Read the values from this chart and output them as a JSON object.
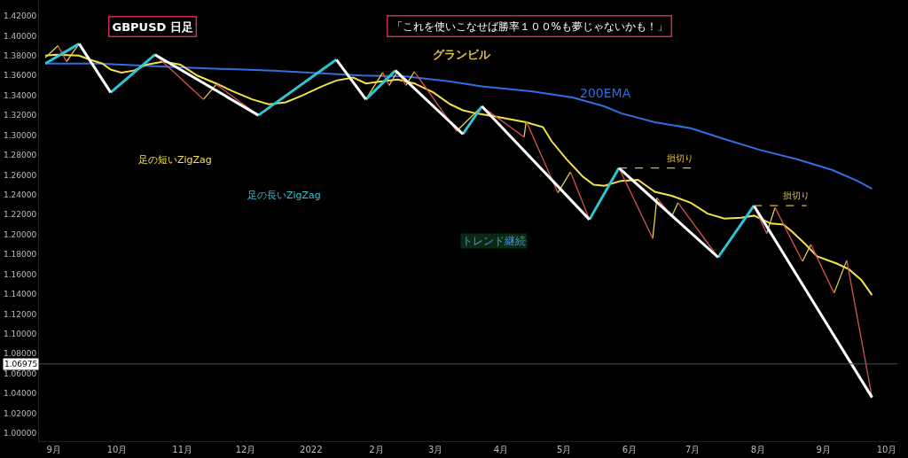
{
  "chart_data": {
    "type": "line",
    "title": "GBPUSD 日足",
    "subtitle": "「これを使いこなせば勝率１００%も夢じゃないかも！」",
    "annotations": [
      "グランビル",
      "足の短いZigZag",
      "足の長いZigZag",
      "トレンド継続",
      {
        "text": "損切り",
        "x": "2022-06-25",
        "y": 1.267
      },
      {
        "text": "損切り",
        "x": "2022-08-19",
        "y": 1.229
      }
    ],
    "series": [
      {
        "name": "200EMA",
        "color": "#2f6fe0",
        "x": [
          "2021-08-28",
          "2021-09-22",
          "2021-11-02",
          "2021-12-14",
          "2022-01-25",
          "2022-02-15",
          "2022-03-08",
          "2022-03-23",
          "2022-04-16",
          "2022-05-05",
          "2022-05-20",
          "2022-05-28",
          "2022-06-13",
          "2022-06-30",
          "2022-07-16",
          "2022-08-02",
          "2022-08-19",
          "2022-09-05",
          "2022-09-17",
          "2022-09-24"
        ],
        "values": [
          1.372,
          1.372,
          1.368,
          1.365,
          1.36,
          1.359,
          1.354,
          1.349,
          1.344,
          1.338,
          1.329,
          1.322,
          1.313,
          1.307,
          1.296,
          1.285,
          1.276,
          1.265,
          1.254,
          1.246
        ]
      },
      {
        "color": "#f2e04a",
        "x": [
          "2021-08-28",
          "2021-09-02",
          "2021-09-13",
          "2021-09-18",
          "2021-09-24",
          "2021-09-28",
          "2021-10-03",
          "2021-10-09",
          "2021-10-15",
          "2021-10-23",
          "2021-10-31",
          "2021-11-08",
          "2021-11-17",
          "2021-11-25",
          "2021-12-04",
          "2021-12-12",
          "2021-12-20",
          "2021-12-28",
          "2022-01-06",
          "2022-01-13",
          "2022-01-21",
          "2022-01-27",
          "2022-02-03",
          "2022-02-11",
          "2022-02-19",
          "2022-02-28",
          "2022-03-08",
          "2022-03-14",
          "2022-03-20",
          "2022-03-31",
          "2022-04-13",
          "2022-04-21",
          "2022-04-25",
          "2022-05-02",
          "2022-05-10",
          "2022-05-15",
          "2022-05-20",
          "2022-05-28",
          "2022-06-05",
          "2022-06-13",
          "2022-06-21",
          "2022-06-30",
          "2022-07-08",
          "2022-07-16",
          "2022-07-24",
          "2022-07-30",
          "2022-08-07",
          "2022-08-13",
          "2022-08-17",
          "2022-08-23",
          "2022-08-29",
          "2022-09-07",
          "2022-09-13",
          "2022-09-19",
          "2022-09-24"
        ],
        "values": [
          1.38,
          1.381,
          1.38,
          1.376,
          1.372,
          1.366,
          1.363,
          1.365,
          1.371,
          1.374,
          1.371,
          1.36,
          1.352,
          1.344,
          1.336,
          1.331,
          1.333,
          1.34,
          1.349,
          1.355,
          1.358,
          1.352,
          1.354,
          1.356,
          1.352,
          1.343,
          1.331,
          1.325,
          1.322,
          1.318,
          1.313,
          1.308,
          1.294,
          1.276,
          1.258,
          1.25,
          1.249,
          1.254,
          1.255,
          1.243,
          1.239,
          1.232,
          1.221,
          1.216,
          1.217,
          1.219,
          1.211,
          1.21,
          1.203,
          1.191,
          1.178,
          1.171,
          1.165,
          1.154,
          1.139
        ]
      },
      {
        "color": "#e6d34a",
        "x": [
          "2021-08-28",
          "2021-09-03",
          null,
          "2021-09-07",
          "2021-09-13",
          null,
          "2021-11-11",
          "2021-11-17",
          null,
          "2022-01-27",
          "2022-02-04",
          null,
          "2022-02-07",
          "2022-02-11",
          null,
          "2022-02-15",
          "2022-02-19",
          null,
          "2022-03-11",
          "2022-03-23",
          null,
          "2022-04-12",
          "2022-04-13",
          null,
          "2022-04-28",
          "2022-05-04",
          null,
          "2022-06-12",
          "2022-06-14",
          null,
          "2022-06-21",
          "2022-06-24",
          null,
          "2022-08-05",
          "2022-08-09",
          null,
          "2022-08-22",
          "2022-08-26",
          null,
          "2022-09-06",
          "2022-09-12"
        ],
        "values": [
          1.378,
          1.39,
          null,
          1.374,
          1.392,
          null,
          1.336,
          1.351,
          null,
          1.336,
          1.363,
          null,
          1.35,
          1.364,
          null,
          1.35,
          1.364,
          null,
          1.304,
          1.329,
          null,
          1.298,
          1.314,
          null,
          1.242,
          1.263,
          null,
          1.196,
          1.237,
          null,
          1.218,
          1.232,
          null,
          1.201,
          1.227,
          null,
          1.173,
          1.19,
          null,
          1.141,
          1.174
        ]
      },
      {
        "color": "#d9534f",
        "x": [
          "2021-09-03",
          "2021-09-07",
          null,
          "2021-10-19",
          "2021-11-11",
          null,
          "2021-11-17",
          "2021-12-07",
          null,
          "2022-02-04",
          "2022-02-07",
          null,
          "2022-02-11",
          "2022-02-15",
          null,
          "2022-02-19",
          "2022-03-11",
          null,
          "2022-03-23",
          "2022-04-12",
          null,
          "2022-04-13",
          "2022-04-28",
          null,
          "2022-05-04",
          "2022-05-13",
          null,
          "2022-05-27",
          "2022-06-12",
          null,
          "2022-06-14",
          "2022-06-21",
          null,
          "2022-06-24",
          "2022-07-13",
          null,
          "2022-07-30",
          "2022-08-05",
          null,
          "2022-08-09",
          "2022-08-22",
          null,
          "2022-08-26",
          "2022-09-06",
          null,
          "2022-09-12",
          "2022-09-24"
        ],
        "values": [
          1.39,
          1.374,
          null,
          1.381,
          1.336,
          null,
          1.351,
          1.32,
          null,
          1.363,
          1.35,
          null,
          1.364,
          1.35,
          null,
          1.364,
          1.304,
          null,
          1.329,
          1.298,
          null,
          1.314,
          1.242,
          null,
          1.263,
          1.215,
          null,
          1.267,
          1.196,
          null,
          1.237,
          1.218,
          null,
          1.232,
          1.177,
          null,
          1.229,
          1.201,
          null,
          1.227,
          1.173,
          null,
          1.19,
          1.141,
          null,
          1.174,
          1.036
        ]
      },
      {
        "color": "#2ec4d6",
        "x": [
          "2021-08-28",
          "2021-09-13",
          null,
          "2021-09-28",
          "2021-10-19",
          null,
          "2021-12-07",
          "2022-01-13",
          null,
          "2022-01-27",
          "2022-02-10",
          null,
          "2022-03-14",
          "2022-03-23",
          null,
          "2022-05-13",
          "2022-05-27",
          null,
          "2022-07-13",
          "2022-07-30"
        ],
        "values": [
          1.372,
          1.392,
          null,
          1.343,
          1.381,
          null,
          1.32,
          1.376,
          null,
          1.336,
          1.365,
          null,
          1.301,
          1.329,
          null,
          1.215,
          1.267,
          null,
          1.177,
          1.229
        ]
      },
      {
        "color": "#ffffff",
        "x": [
          "2021-09-13",
          "2021-09-28",
          null,
          "2021-10-19",
          "2021-12-07",
          null,
          "2022-01-13",
          "2022-01-27",
          null,
          "2022-02-10",
          "2022-03-14",
          null,
          "2022-03-23",
          "2022-05-13",
          null,
          "2022-05-27",
          "2022-07-13",
          null,
          "2022-07-30",
          "2022-09-24"
        ],
        "values": [
          1.392,
          1.343,
          null,
          1.381,
          1.32,
          null,
          1.376,
          1.336,
          null,
          1.365,
          1.301,
          null,
          1.329,
          1.215,
          null,
          1.267,
          1.177,
          null,
          1.229,
          1.036
        ]
      },
      {
        "color": "#d9b84a",
        "line_style": "dashed",
        "x": [
          "2022-05-27",
          "2022-07-01"
        ],
        "values": [
          1.267,
          1.267
        ]
      },
      {
        "color": "#d9b84a",
        "line_style": "dashed",
        "x": [
          "2022-07-30",
          "2022-08-24"
        ],
        "values": [
          1.229,
          1.229
        ]
      }
    ],
    "ref_lines": [
      {
        "axis": "y",
        "value": 1.06975,
        "label": "1.06975",
        "color": "#4a4a4a"
      }
    ],
    "xlim": [
      "2021-08-25",
      "2022-10-06"
    ],
    "xticks": [
      {
        "value": "2021-09-01",
        "label": "9月"
      },
      {
        "value": "2021-10-01",
        "label": "10月"
      },
      {
        "value": "2021-11-01",
        "label": "11月"
      },
      {
        "value": "2021-12-01",
        "label": "12月"
      },
      {
        "value": "2022-01-01",
        "label": "2022"
      },
      {
        "value": "2022-02-01",
        "label": "2月"
      },
      {
        "value": "2022-03-01",
        "label": "3月"
      },
      {
        "value": "2022-04-01",
        "label": "4月"
      },
      {
        "value": "2022-05-01",
        "label": "5月"
      },
      {
        "value": "2022-06-01",
        "label": "6月"
      },
      {
        "value": "2022-07-01",
        "label": "7月"
      },
      {
        "value": "2022-08-01",
        "label": "8月"
      },
      {
        "value": "2022-09-01",
        "label": "9月"
      },
      {
        "value": "2022-10-01",
        "label": "10月"
      }
    ],
    "ylim": [
      0.992,
      1.436
    ],
    "yticks": [
      {
        "value": 1.0,
        "label": "1.00000"
      },
      {
        "value": 1.02,
        "label": "1.02000"
      },
      {
        "value": 1.04,
        "label": "1.04000"
      },
      {
        "value": 1.06,
        "label": "1.06000"
      },
      {
        "value": 1.08,
        "label": "1.08000"
      },
      {
        "value": 1.1,
        "label": "1.10000"
      },
      {
        "value": 1.12,
        "label": "1.12000"
      },
      {
        "value": 1.14,
        "label": "1.14000"
      },
      {
        "value": 1.16,
        "label": "1.16000"
      },
      {
        "value": 1.18,
        "label": "1.18000"
      },
      {
        "value": 1.2,
        "label": "1.20000"
      },
      {
        "value": 1.22,
        "label": "1.22000"
      },
      {
        "value": 1.24,
        "label": "1.24000"
      },
      {
        "value": 1.26,
        "label": "1.26000"
      },
      {
        "value": 1.28,
        "label": "1.28000"
      },
      {
        "value": 1.3,
        "label": "1.30000"
      },
      {
        "value": 1.32,
        "label": "1.32000"
      },
      {
        "value": 1.34,
        "label": "1.34000"
      },
      {
        "value": 1.36,
        "label": "1.36000"
      },
      {
        "value": 1.38,
        "label": "1.38000"
      },
      {
        "value": 1.4,
        "label": "1.40000"
      },
      {
        "value": 1.42,
        "label": "1.42000"
      }
    ],
    "grid": false,
    "legend": false,
    "marker": "none",
    "line_style": "solid"
  }
}
